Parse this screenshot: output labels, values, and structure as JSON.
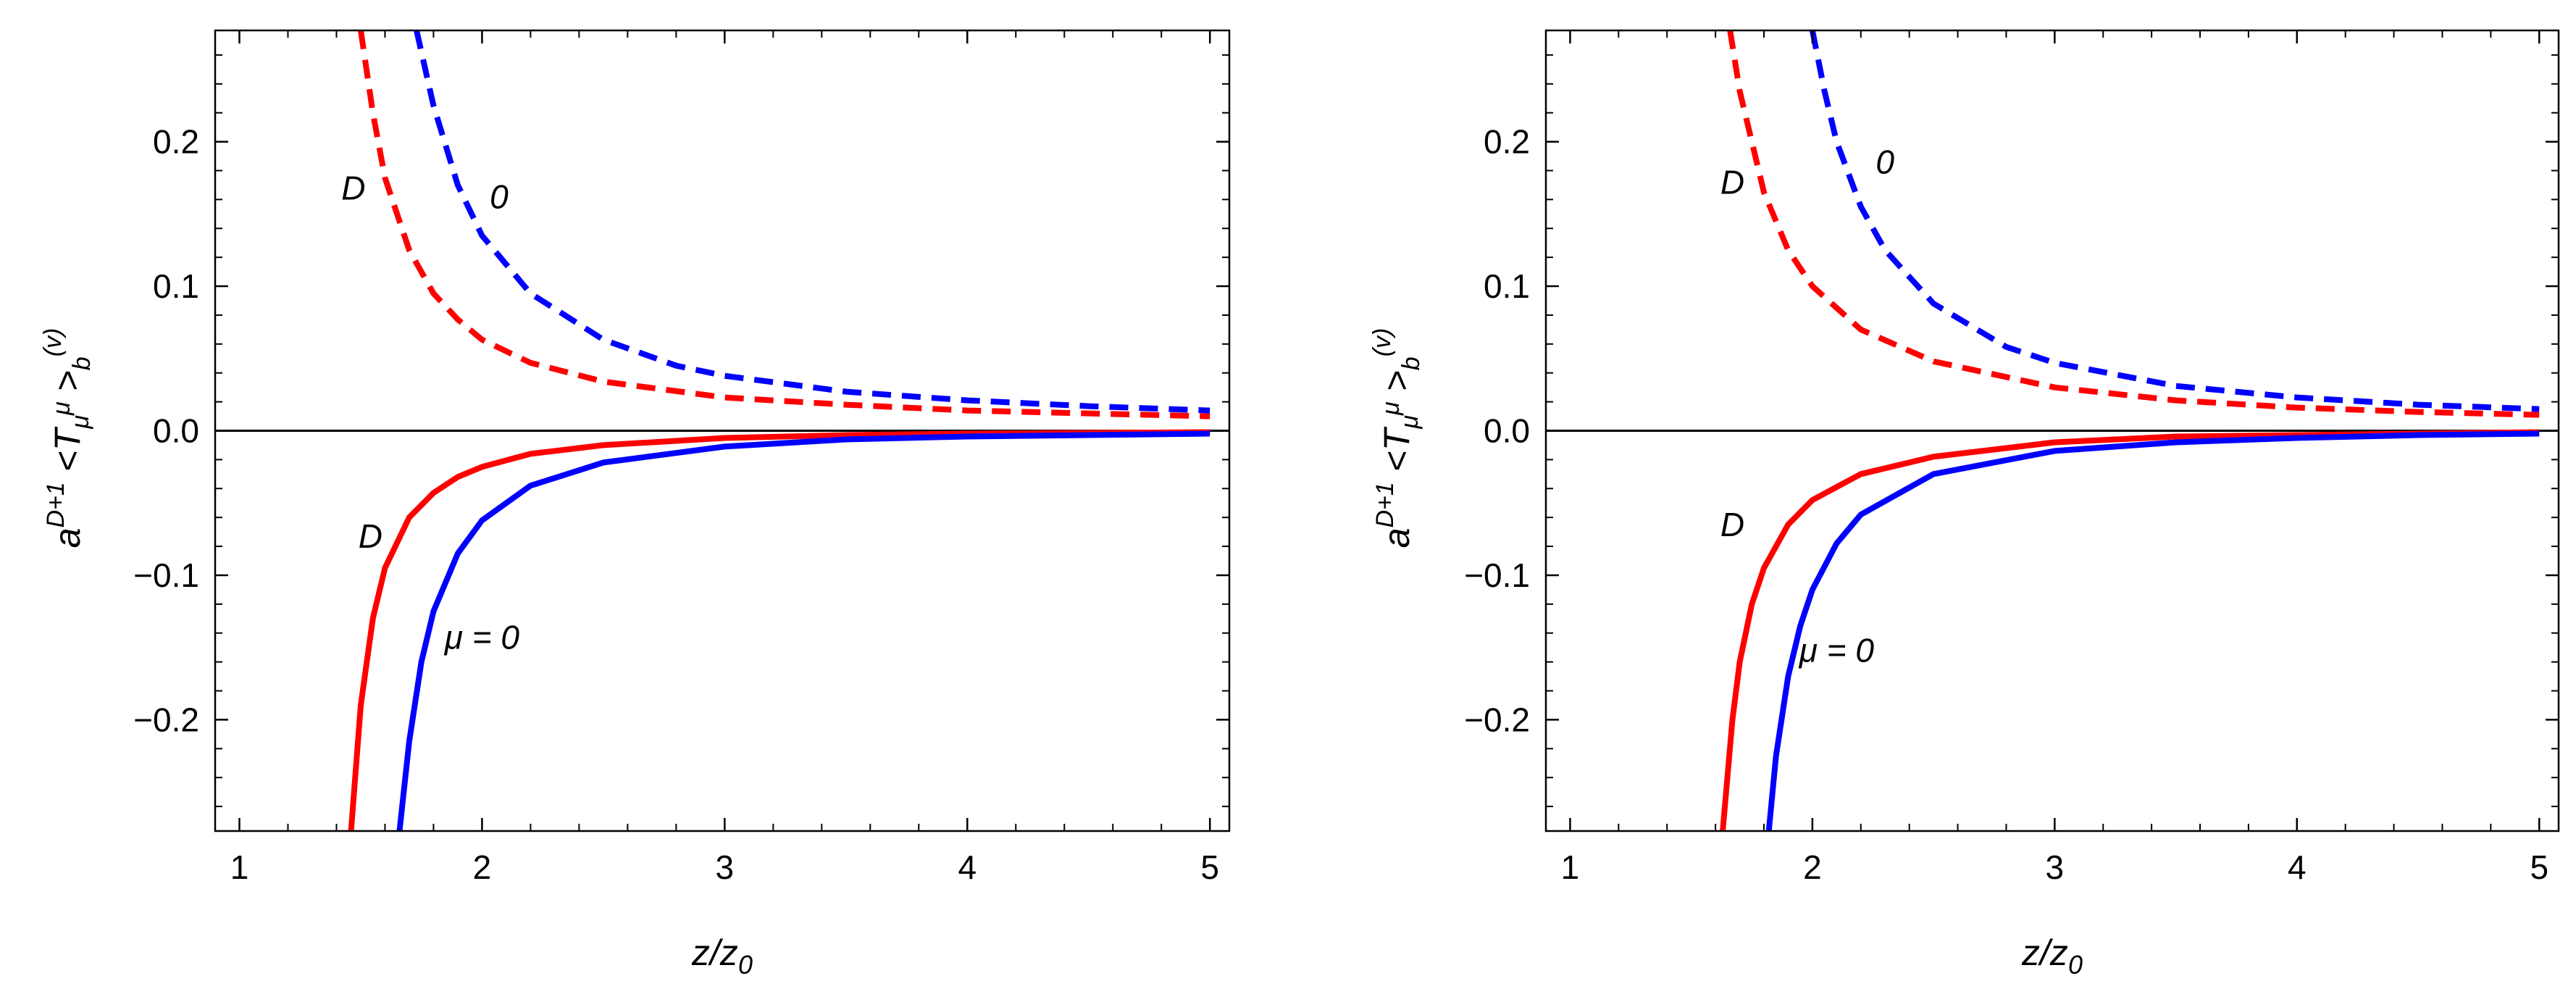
{
  "colors": {
    "red": "#ff0000",
    "blue": "#0000ff",
    "axis": "#000000"
  },
  "chart_data": [
    {
      "type": "line",
      "xlabel": "z/z0",
      "ylabel": "a^{D+1} <T_μ^μ>_b^{(v)}",
      "xlim": [
        0.9,
        5.08
      ],
      "ylim": [
        -0.277,
        0.277
      ],
      "x_ticks": [
        "1",
        "2",
        "3",
        "4",
        "5"
      ],
      "y_ticks": [
        "-0.2",
        "-0.1",
        "0.0",
        "0.1",
        "0.2"
      ],
      "zero_line": true,
      "grid": false,
      "annotations": [
        {
          "text": "D",
          "x": 1.47,
          "y": 0.168
        },
        {
          "text": "0",
          "x": 2.07,
          "y": 0.162
        },
        {
          "text": "D",
          "x": 1.54,
          "y": -0.073
        },
        {
          "text": "μ = 0",
          "x": 2.0,
          "y": -0.143
        }
      ],
      "series": [
        {
          "color": "red",
          "dash": true,
          "x": [
            1.5,
            1.55,
            1.6,
            1.7,
            1.8,
            1.9,
            2.0,
            2.2,
            2.5,
            3.0,
            3.5,
            4.0,
            4.5,
            5.0
          ],
          "y": [
            0.277,
            0.22,
            0.175,
            0.125,
            0.095,
            0.077,
            0.063,
            0.047,
            0.034,
            0.023,
            0.018,
            0.014,
            0.012,
            0.01
          ]
        },
        {
          "color": "blue",
          "dash": true,
          "x": [
            1.73,
            1.8,
            1.9,
            2.0,
            2.2,
            2.5,
            2.8,
            3.0,
            3.5,
            4.0,
            4.5,
            5.0
          ],
          "y": [
            0.277,
            0.225,
            0.17,
            0.135,
            0.095,
            0.063,
            0.045,
            0.038,
            0.027,
            0.021,
            0.017,
            0.014
          ]
        },
        {
          "color": "red",
          "dash": false,
          "x": [
            1.46,
            1.5,
            1.55,
            1.6,
            1.7,
            1.8,
            1.9,
            2.0,
            2.2,
            2.5,
            3.0,
            3.5,
            4.0,
            5.0
          ],
          "y": [
            -0.277,
            -0.19,
            -0.13,
            -0.095,
            -0.06,
            -0.043,
            -0.032,
            -0.025,
            -0.016,
            -0.01,
            -0.005,
            -0.003,
            -0.002,
            -0.001
          ]
        },
        {
          "color": "blue",
          "dash": false,
          "x": [
            1.66,
            1.7,
            1.75,
            1.8,
            1.9,
            2.0,
            2.2,
            2.5,
            3.0,
            3.5,
            4.0,
            4.5,
            5.0
          ],
          "y": [
            -0.277,
            -0.215,
            -0.16,
            -0.125,
            -0.085,
            -0.062,
            -0.038,
            -0.022,
            -0.011,
            -0.006,
            -0.004,
            -0.003,
            -0.002
          ]
        }
      ]
    },
    {
      "type": "line",
      "xlabel": "z/z0",
      "ylabel": "a^{D+1} <T_μ^μ>_b^{(v)}",
      "xlim": [
        0.9,
        5.08
      ],
      "ylim": [
        -0.277,
        0.277
      ],
      "x_ticks": [
        "1",
        "2",
        "3",
        "4",
        "5"
      ],
      "y_ticks": [
        "-0.2",
        "-0.1",
        "0.0",
        "0.1",
        "0.2"
      ],
      "zero_line": true,
      "grid": false,
      "annotations": [
        {
          "text": "D",
          "x": 1.67,
          "y": 0.172
        },
        {
          "text": "0",
          "x": 2.3,
          "y": 0.186
        },
        {
          "text": "D",
          "x": 1.67,
          "y": -0.065
        },
        {
          "text": "μ = 0",
          "x": 2.1,
          "y": -0.152
        }
      ],
      "series": [
        {
          "color": "red",
          "dash": true,
          "x": [
            1.66,
            1.7,
            1.8,
            1.9,
            2.0,
            2.2,
            2.5,
            3.0,
            3.5,
            4.0,
            4.5,
            5.0
          ],
          "y": [
            0.277,
            0.235,
            0.165,
            0.125,
            0.1,
            0.07,
            0.048,
            0.03,
            0.021,
            0.016,
            0.013,
            0.011
          ]
        },
        {
          "color": "blue",
          "dash": true,
          "x": [
            2.0,
            2.05,
            2.1,
            2.2,
            2.3,
            2.5,
            2.8,
            3.0,
            3.5,
            4.0,
            4.5,
            5.0
          ],
          "y": [
            0.277,
            0.235,
            0.2,
            0.155,
            0.125,
            0.088,
            0.058,
            0.047,
            0.031,
            0.023,
            0.018,
            0.015
          ]
        },
        {
          "color": "red",
          "dash": false,
          "x": [
            1.63,
            1.67,
            1.7,
            1.75,
            1.8,
            1.9,
            2.0,
            2.2,
            2.5,
            3.0,
            3.5,
            4.0,
            5.0
          ],
          "y": [
            -0.277,
            -0.2,
            -0.16,
            -0.12,
            -0.095,
            -0.065,
            -0.048,
            -0.03,
            -0.018,
            -0.008,
            -0.004,
            -0.003,
            -0.001
          ]
        },
        {
          "color": "blue",
          "dash": false,
          "x": [
            1.82,
            1.85,
            1.9,
            1.95,
            2.0,
            2.1,
            2.2,
            2.5,
            3.0,
            3.5,
            4.0,
            4.5,
            5.0
          ],
          "y": [
            -0.277,
            -0.225,
            -0.17,
            -0.135,
            -0.11,
            -0.078,
            -0.058,
            -0.03,
            -0.014,
            -0.008,
            -0.005,
            -0.003,
            -0.002
          ]
        }
      ]
    }
  ]
}
